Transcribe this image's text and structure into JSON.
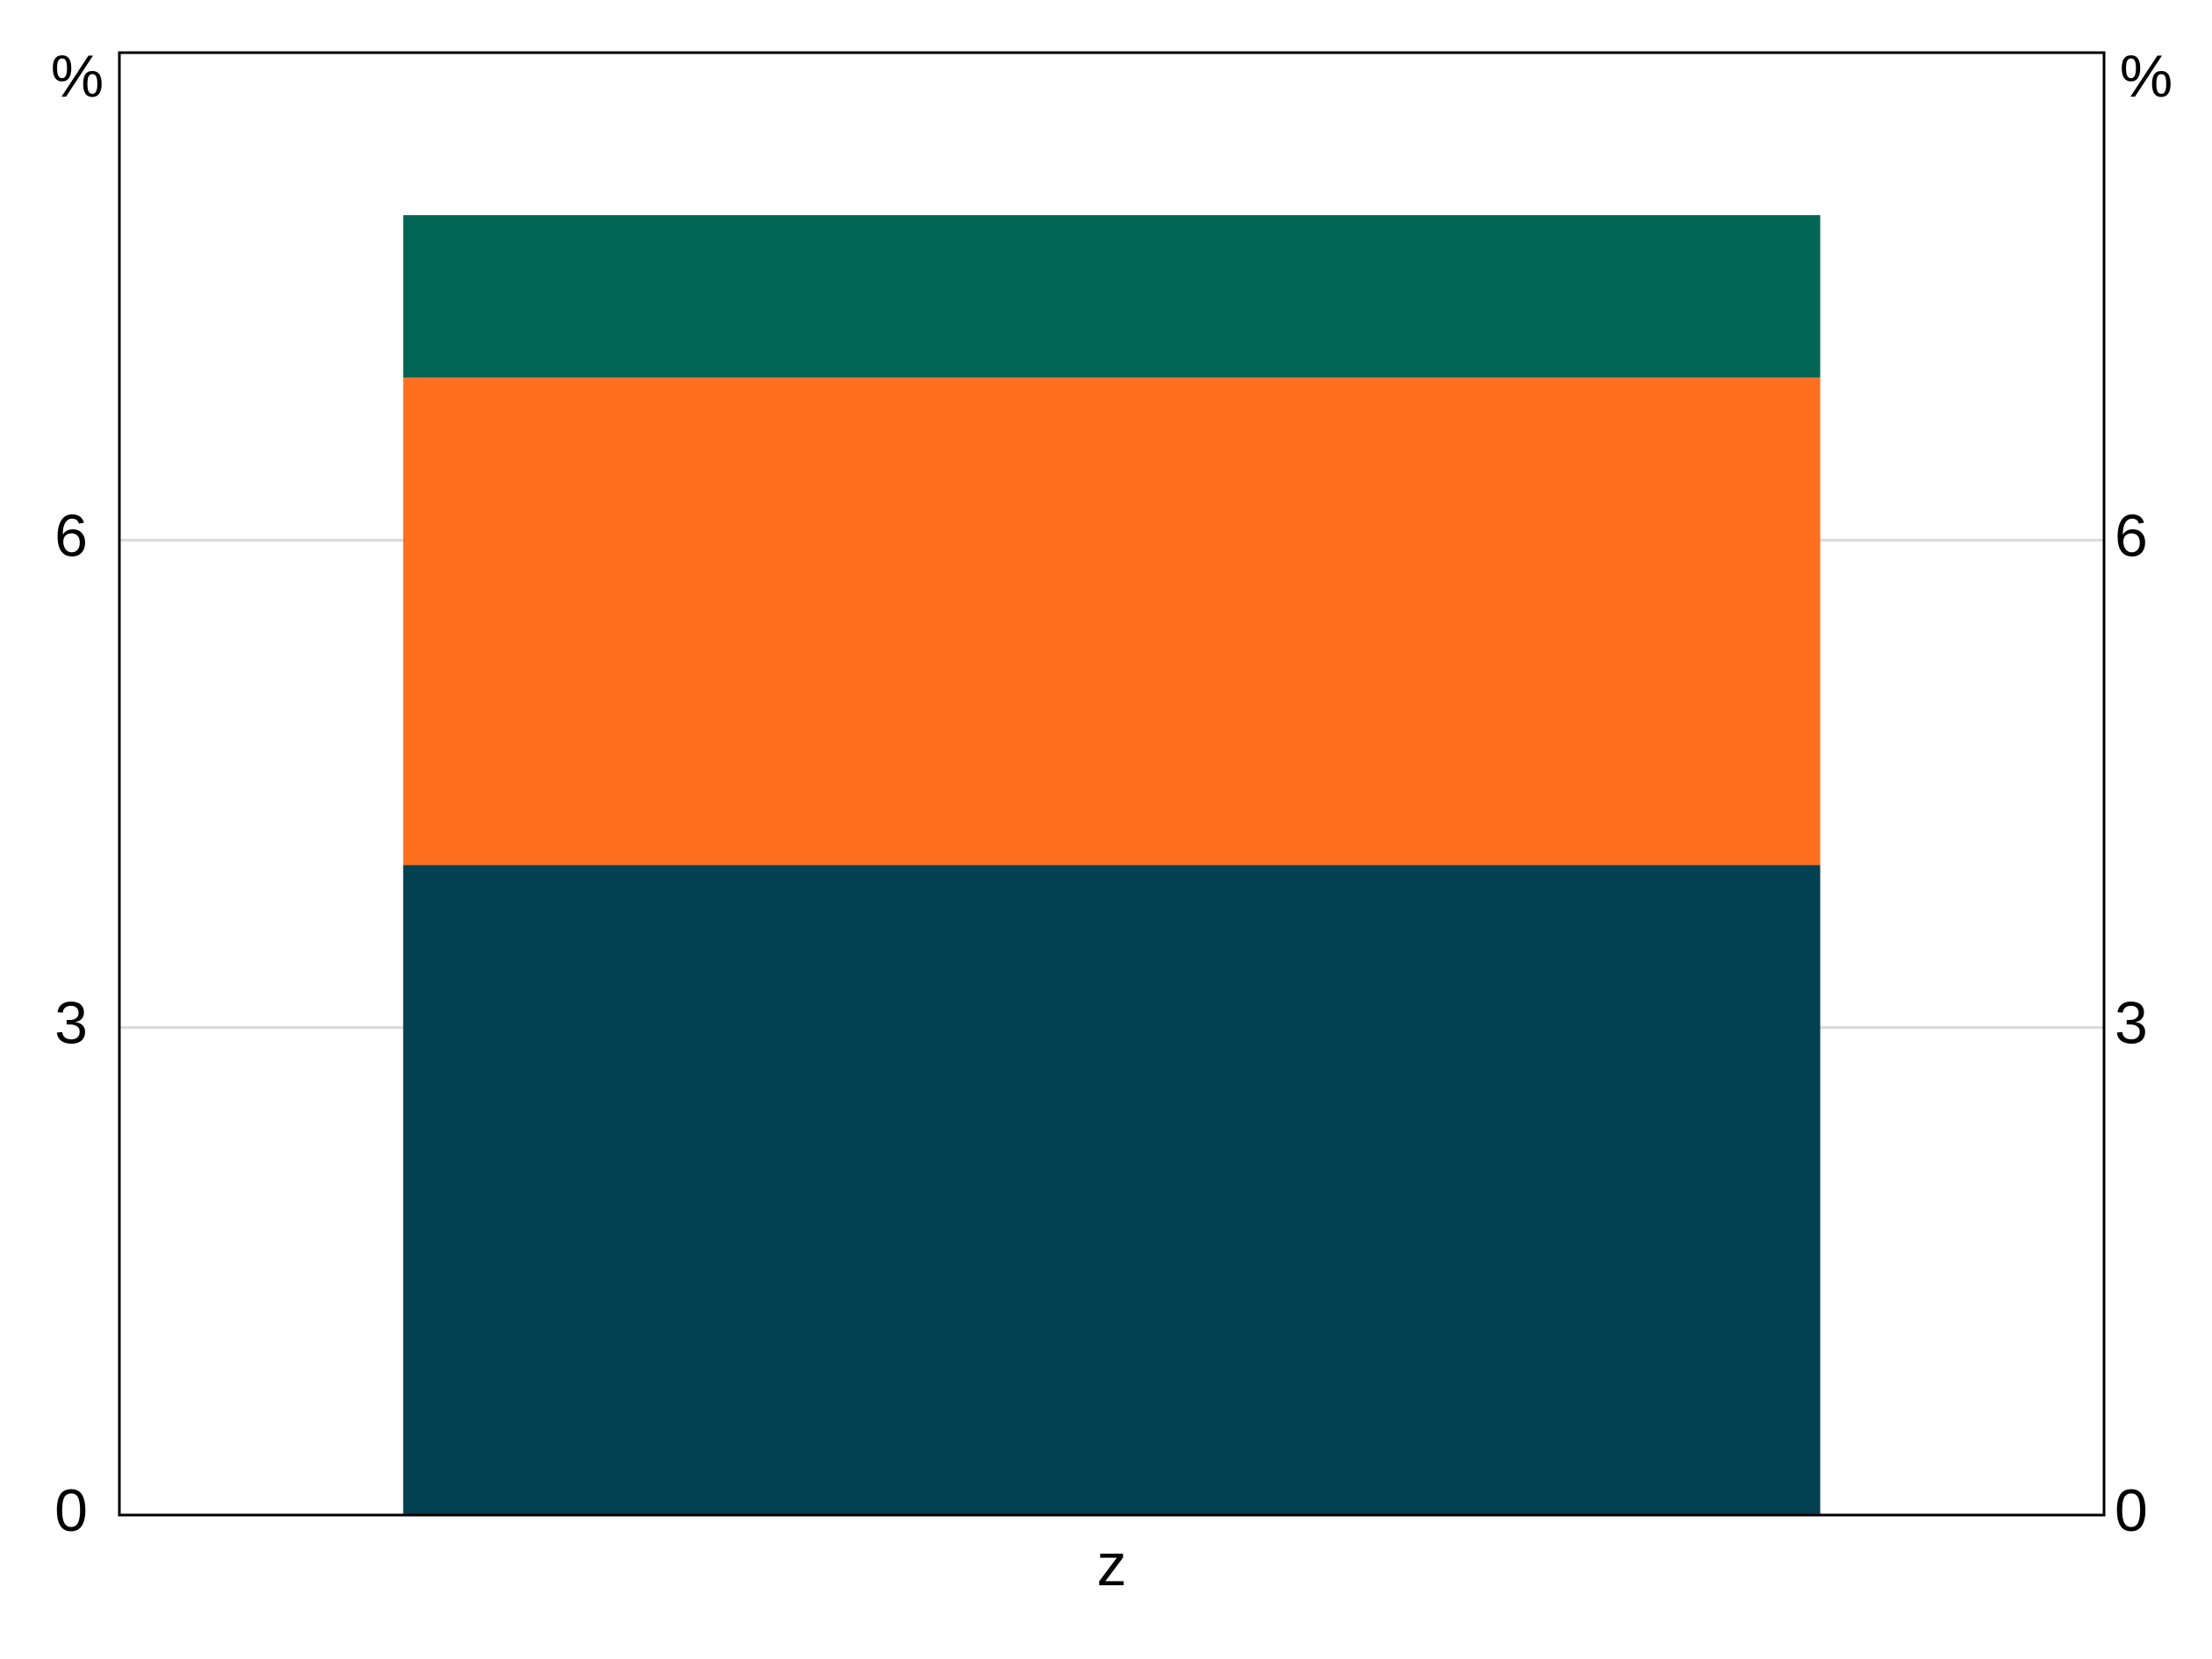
{
  "chart_data": {
    "type": "bar",
    "stacked": true,
    "categories": [
      "z"
    ],
    "series": [
      {
        "values": [
          4.0
        ],
        "color": "#024152"
      },
      {
        "values": [
          3.0
        ],
        "color": "#FF6F20"
      },
      {
        "values": [
          1.0
        ],
        "color": "#006653"
      }
    ],
    "ylim": [
      0,
      9
    ],
    "yticks": [
      0,
      3,
      6
    ],
    "ytick_labels": [
      "0",
      "3",
      "6"
    ],
    "y_unit": "%",
    "grid": "horizontal",
    "right_axis_mirrors_left": true,
    "title": "",
    "xlabel": "",
    "ylabel": ""
  }
}
